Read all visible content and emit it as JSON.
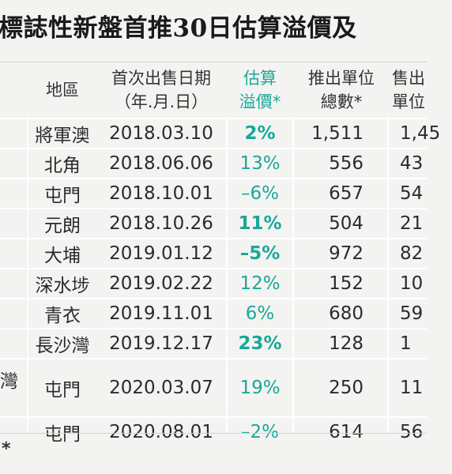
{
  "title": "標誌性新盤首推30日估算溢價及",
  "headers": {
    "area": "地區",
    "date_line1": "首次出售日期",
    "date_line2": "（年.月.日）",
    "premium_line1": "估算",
    "premium_line2": "溢價*",
    "units_line1": "推出單位",
    "units_line2": "總數*",
    "sold_line1": "售出",
    "sold_line2": "單位"
  },
  "rows": [
    {
      "area": "將軍澳",
      "date": "2018.03.10",
      "premium": "2%",
      "premium_bold": true,
      "units": "1,511",
      "sold": "1,45"
    },
    {
      "area": "北角",
      "date": "2018.06.06",
      "premium": "13%",
      "premium_bold": false,
      "units": "556",
      "sold": "43"
    },
    {
      "area": "屯門",
      "date": "2018.10.01",
      "premium": "–6%",
      "premium_bold": false,
      "units": "657",
      "sold": "54"
    },
    {
      "area": "元朗",
      "date": "2018.10.26",
      "premium": "11%",
      "premium_bold": true,
      "units": "504",
      "sold": "21"
    },
    {
      "area": "大埔",
      "date": "2019.01.12",
      "premium": "–5%",
      "premium_bold": true,
      "units": "972",
      "sold": "82"
    },
    {
      "area": "深水埗",
      "date": "2019.02.22",
      "premium": "12%",
      "premium_bold": false,
      "units": "152",
      "sold": "10"
    },
    {
      "area": "青衣",
      "date": "2019.11.01",
      "premium": "6%",
      "premium_bold": false,
      "units": "680",
      "sold": "59"
    },
    {
      "area": "長沙灣",
      "date": "2019.12.17",
      "premium": "23%",
      "premium_bold": true,
      "units": "128",
      "sold": "1"
    },
    {
      "dev_fragment": "灣",
      "area": "屯門",
      "date": "2020.03.07",
      "premium": "19%",
      "premium_bold": false,
      "units": "250",
      "sold": "11"
    },
    {
      "area": "屯門",
      "date": "2020.08.01",
      "premium": "–2%",
      "premium_bold": false,
      "units": "614",
      "sold": "56"
    }
  ],
  "footnote": "*",
  "colors": {
    "accent": "#1aa79a",
    "background": "#f3f4f1"
  }
}
